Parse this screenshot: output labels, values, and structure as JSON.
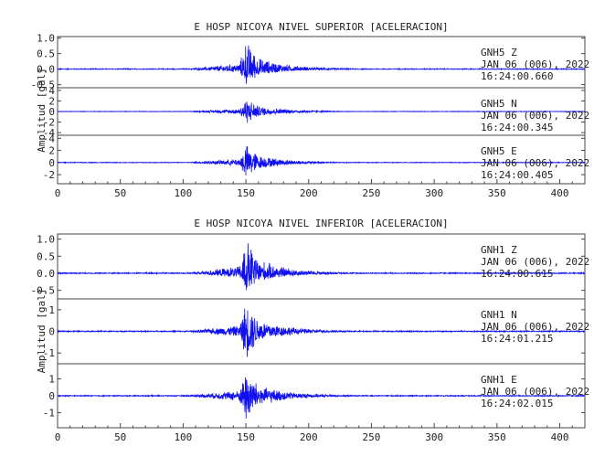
{
  "chart_data": [
    {
      "type": "line",
      "title": "E HOSP NICOYA NIVEL SUPERIOR [ACELERACION]",
      "ylabel": "Amplitud [gal]",
      "xlim": [
        0,
        420
      ],
      "x_ticks": [
        "0",
        "50",
        "100",
        "150",
        "200",
        "250",
        "300",
        "350",
        "400"
      ],
      "grid": false,
      "series": [
        {
          "name": "GNH5   Z",
          "date": "JAN 06 (006), 2022",
          "time": "16:24:00.660",
          "ylim": [
            -0.6,
            1.05
          ],
          "y_ticks": [
            "1.0",
            "0.5",
            "0.0",
            "-0.5"
          ],
          "peak": 1.0,
          "trough": -0.55,
          "color": "#1010ee"
        },
        {
          "name": "GNH5   N",
          "date": "JAN 06 (006), 2022",
          "time": "16:24:00.345",
          "ylim": [
            -4.5,
            4.5
          ],
          "y_ticks": [
            "4",
            "2",
            "0",
            "-2",
            "-4"
          ],
          "peak": 2.8,
          "trough": -2.6,
          "color": "#1010ee"
        },
        {
          "name": "GNH5   E",
          "date": "JAN 06 (006), 2022",
          "time": "16:24:00.405",
          "ylim": [
            -3.5,
            4.5
          ],
          "y_ticks": [
            "4",
            "2",
            "0",
            "-2"
          ],
          "peak": 3.2,
          "trough": -3.0,
          "color": "#1010ee"
        }
      ]
    },
    {
      "type": "line",
      "title": "E HOSP NICOYA NIVEL INFERIOR [ACELERACION]",
      "ylabel": "Amplitud [gal]",
      "xlim": [
        0,
        420
      ],
      "x_ticks": [
        "0",
        "50",
        "100",
        "150",
        "200",
        "250",
        "300",
        "350",
        "400"
      ],
      "grid": false,
      "series": [
        {
          "name": "GNH1   Z",
          "date": "JAN 06 (006), 2022",
          "time": "16:24:00.615",
          "ylim": [
            -0.75,
            1.15
          ],
          "y_ticks": [
            "1.0",
            "0.5",
            "0.0",
            "-0.5"
          ],
          "peak": 1.1,
          "trough": -0.7,
          "color": "#1010ee"
        },
        {
          "name": "GNH1   N",
          "date": "JAN 06 (006), 2022",
          "time": "16:24:01.215",
          "ylim": [
            -1.5,
            1.5
          ],
          "y_ticks": [
            "1",
            "0",
            "-1"
          ],
          "peak": 1.45,
          "trough": -1.35,
          "color": "#1010ee"
        },
        {
          "name": "GNH1   E",
          "date": "JAN 06 (006), 2022",
          "time": "16:24:02.015",
          "ylim": [
            -1.9,
            1.9
          ],
          "y_ticks": [
            "1",
            "0",
            "-1"
          ],
          "peak": 1.6,
          "trough": -1.75,
          "color": "#1010ee"
        }
      ]
    }
  ]
}
